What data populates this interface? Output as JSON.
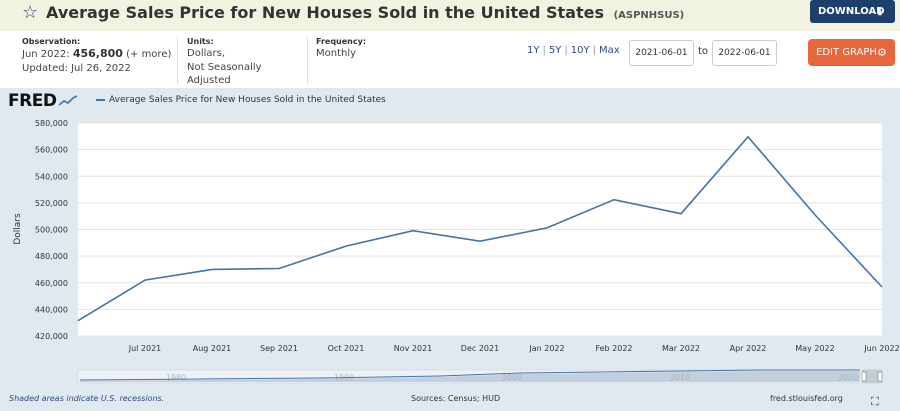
{
  "header": {
    "title": "Average Sales Price for New Houses Sold in the United States",
    "series_id": "(ASPNHSUS)",
    "download_label": "DOWNLOAD",
    "edit_label": "EDIT GRAPH"
  },
  "meta": {
    "observation_label": "Observation:",
    "observation_date": "Jun 2022:",
    "observation_value": "456,800",
    "observation_more": "(+ more)",
    "updated": "Updated: Jul 26, 2022",
    "units_label": "Units:",
    "units_line1": "Dollars,",
    "units_line2": "Not Seasonally Adjusted",
    "frequency_label": "Frequency:",
    "frequency_value": "Monthly"
  },
  "controls": {
    "range_1y": "1Y",
    "range_5y": "5Y",
    "range_10y": "10Y",
    "range_max": "Max",
    "start_date": "2021-06-01",
    "to_label": "to",
    "end_date": "2022-06-01"
  },
  "chart_panel": {
    "logo": "FRED",
    "legend_label": "Average Sales Price for New Houses Sold in the United States",
    "footer_recession": "Shaded areas indicate U.S. recessions.",
    "footer_sources": "Sources: Census; HUD",
    "footer_site": "fred.stlouisfed.org"
  },
  "colors": {
    "line": "#4572a7",
    "panel_bg": "#e1e9f0",
    "edit_button": "#e8663d",
    "download_button": "#1d3f6b"
  },
  "chart_data": {
    "type": "line",
    "title": "Average Sales Price for New Houses Sold in the United States",
    "xlabel": "",
    "ylabel": "Dollars",
    "x": [
      "Jun 2021",
      "Jul 2021",
      "Aug 2021",
      "Sep 2021",
      "Oct 2021",
      "Nov 2021",
      "Dec 2021",
      "Jan 2022",
      "Feb 2022",
      "Mar 2022",
      "Apr 2022",
      "May 2022",
      "Jun 2022"
    ],
    "x_tick_labels": [
      "Jul 2021",
      "Aug 2021",
      "Sep 2021",
      "Oct 2021",
      "Nov 2021",
      "Dec 2021",
      "Jan 2022",
      "Feb 2022",
      "Mar 2022",
      "Apr 2022",
      "May 2022",
      "Jun 2022"
    ],
    "series": [
      {
        "name": "Average Sales Price for New Houses Sold in the United States",
        "values": [
          431500,
          462000,
          470000,
          470700,
          487500,
          499100,
          491200,
          501200,
          522400,
          511900,
          569600,
          511000,
          456800
        ]
      }
    ],
    "ylim": [
      420000,
      580000
    ],
    "y_ticks": [
      420000,
      440000,
      460000,
      480000,
      500000,
      520000,
      540000,
      560000,
      580000
    ],
    "y_tick_labels": [
      "420,000",
      "440,000",
      "460,000",
      "480,000",
      "500,000",
      "520,000",
      "540,000",
      "560,000",
      "580,000"
    ],
    "grid": true,
    "legend_position": "top-left",
    "navigator_labels": [
      "1980",
      "1990",
      "2000",
      "2010",
      "2020"
    ]
  }
}
